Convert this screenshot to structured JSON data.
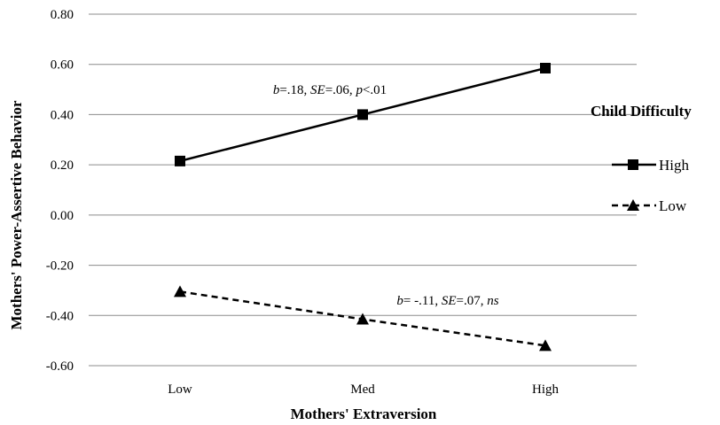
{
  "chart_data": {
    "type": "line",
    "categories": [
      "Low",
      "Med",
      "High"
    ],
    "series": [
      {
        "name": "High",
        "values": [
          0.215,
          0.4,
          0.585
        ],
        "line_style": "solid",
        "marker": "square",
        "color": "#000000"
      },
      {
        "name": "Low",
        "values": [
          -0.305,
          -0.415,
          -0.52
        ],
        "line_style": "dashed",
        "marker": "triangle",
        "color": "#000000"
      }
    ],
    "y_ticks": [
      "0.80",
      "0.60",
      "0.40",
      "0.20",
      "0.00",
      "-0.20",
      "-0.40",
      "-0.60"
    ],
    "ylim": [
      -0.6,
      0.8
    ],
    "xlabel": "Mothers' Extraversion",
    "ylabel": "Mothers' Power-Assertive Behavior",
    "legend_title": "Child Difficulty",
    "legend_position": "right",
    "grid": "horizontal",
    "annotations": [
      {
        "series": "High",
        "parts": [
          {
            "text": "b",
            "italic": true
          },
          {
            "text": "=.18, ",
            "italic": false
          },
          {
            "text": "SE",
            "italic": true
          },
          {
            "text": "=.06, ",
            "italic": false
          },
          {
            "text": "p",
            "italic": true
          },
          {
            "text": "<.01",
            "italic": false
          }
        ]
      },
      {
        "series": "Low",
        "parts": [
          {
            "text": "b",
            "italic": true
          },
          {
            "text": "= -.11, ",
            "italic": false
          },
          {
            "text": "SE",
            "italic": true
          },
          {
            "text": "=.07, ",
            "italic": false
          },
          {
            "text": "ns",
            "italic": true
          }
        ]
      }
    ]
  }
}
